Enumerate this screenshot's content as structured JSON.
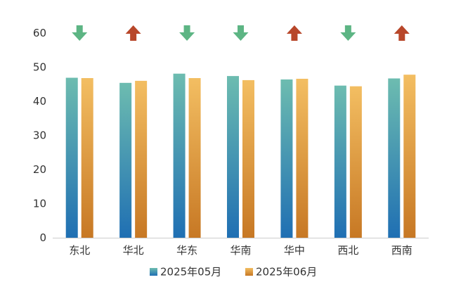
{
  "chart_data": {
    "type": "bar",
    "title": "",
    "xlabel": "",
    "ylabel": "",
    "ylim": [
      0,
      60
    ],
    "yticks": [
      0,
      10,
      20,
      30,
      40,
      50,
      60
    ],
    "grid": false,
    "legend_position": "bottom",
    "categories": [
      "东北",
      "华北",
      "华东",
      "华南",
      "华中",
      "西北",
      "西南"
    ],
    "series": [
      {
        "name": "2025年05月",
        "values": [
          46.9,
          45.4,
          48.1,
          47.4,
          46.4,
          44.6,
          46.7
        ],
        "color_top": "#6dbcb0",
        "color_bottom": "#1f6fb3"
      },
      {
        "name": "2025年06月",
        "values": [
          46.8,
          46.0,
          46.8,
          46.2,
          46.6,
          44.4,
          47.8
        ],
        "color_top": "#f3be62",
        "color_bottom": "#c77824"
      }
    ],
    "trend_arrows": [
      "down",
      "up",
      "down",
      "down",
      "up",
      "down",
      "up"
    ],
    "colors": {
      "arrow_down": "#5db584",
      "arrow_up": "#b8472a",
      "axis": "#cccccc"
    }
  }
}
